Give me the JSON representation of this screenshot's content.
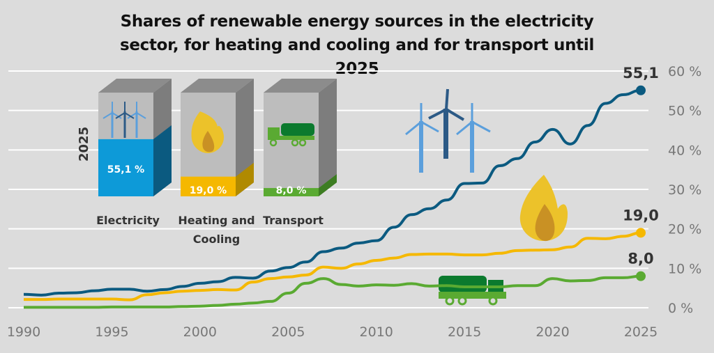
{
  "chart_data": {
    "type": "line",
    "title": "Shares of renewable energy sources in the electricity sector, for heating and cooling and for transport until 2025",
    "x": [
      1990,
      1991,
      1992,
      1993,
      1994,
      1995,
      1996,
      1997,
      1998,
      1999,
      2000,
      2001,
      2002,
      2003,
      2004,
      2005,
      2006,
      2007,
      2008,
      2009,
      2010,
      2011,
      2012,
      2013,
      2014,
      2015,
      2016,
      2017,
      2018,
      2019,
      2020,
      2021,
      2022,
      2023,
      2024,
      2025
    ],
    "xticks": [
      "1990",
      "1995",
      "2000",
      "2005",
      "2010",
      "2015",
      "2020",
      "2025"
    ],
    "yticks": [
      "0 %",
      "10 %",
      "20 %",
      "30 %",
      "40 %",
      "50 %",
      "60 %"
    ],
    "ylim": [
      0,
      60
    ],
    "grid": true,
    "series": [
      {
        "name": "Electricity",
        "color": "#0b5a80",
        "end_label": "55,1",
        "values": [
          3.4,
          3.2,
          3.7,
          3.8,
          4.3,
          4.7,
          4.7,
          4.2,
          4.6,
          5.4,
          6.2,
          6.6,
          7.7,
          7.5,
          9.3,
          10.2,
          11.6,
          14.2,
          15.1,
          16.4,
          17.0,
          20.4,
          23.6,
          25.1,
          27.3,
          31.5,
          31.6,
          36.0,
          37.8,
          42.0,
          45.2,
          41.5,
          46.2,
          51.8,
          54.0,
          55.1
        ]
      },
      {
        "name": "Heating and Cooling",
        "color": "#f5b800",
        "end_label": "19,0",
        "values": [
          2.1,
          2.1,
          2.2,
          2.2,
          2.2,
          2.2,
          2.0,
          3.3,
          3.8,
          4.2,
          4.4,
          4.6,
          4.5,
          6.5,
          7.4,
          7.8,
          8.3,
          10.3,
          10.0,
          11.1,
          12.0,
          12.6,
          13.5,
          13.6,
          13.6,
          13.4,
          13.4,
          13.8,
          14.5,
          14.6,
          14.7,
          15.4,
          17.6,
          17.5,
          18.1,
          19.0
        ]
      },
      {
        "name": "Transport",
        "color": "#5aaa32",
        "end_label": "8,0",
        "values": [
          0.1,
          0.1,
          0.1,
          0.1,
          0.1,
          0.2,
          0.2,
          0.2,
          0.2,
          0.3,
          0.4,
          0.6,
          0.9,
          1.2,
          1.6,
          3.7,
          6.2,
          7.4,
          5.9,
          5.5,
          5.8,
          5.7,
          6.1,
          5.5,
          5.6,
          5.3,
          5.3,
          5.3,
          5.6,
          5.6,
          7.4,
          6.8,
          6.9,
          7.6,
          7.6,
          8.0
        ]
      }
    ],
    "inset": {
      "year_label": "2025",
      "boxes": [
        {
          "label": "Electricity",
          "label2": "",
          "value": 55.1,
          "value_label": "55,1 %",
          "front": "#0d9ad8",
          "side": "#0b5a80",
          "icon": "wind-turbines-icon"
        },
        {
          "label": "Heating and",
          "label2": "Cooling",
          "value": 19.0,
          "value_label": "19,0 %",
          "front": "#f5b800",
          "side": "#b08a00",
          "icon": "flame-icon"
        },
        {
          "label": "Transport",
          "label2": "",
          "value": 8.0,
          "value_label": "8,0 %",
          "front": "#5aaa32",
          "side": "#3d7d22",
          "icon": "tanker-truck-icon"
        }
      ]
    }
  }
}
